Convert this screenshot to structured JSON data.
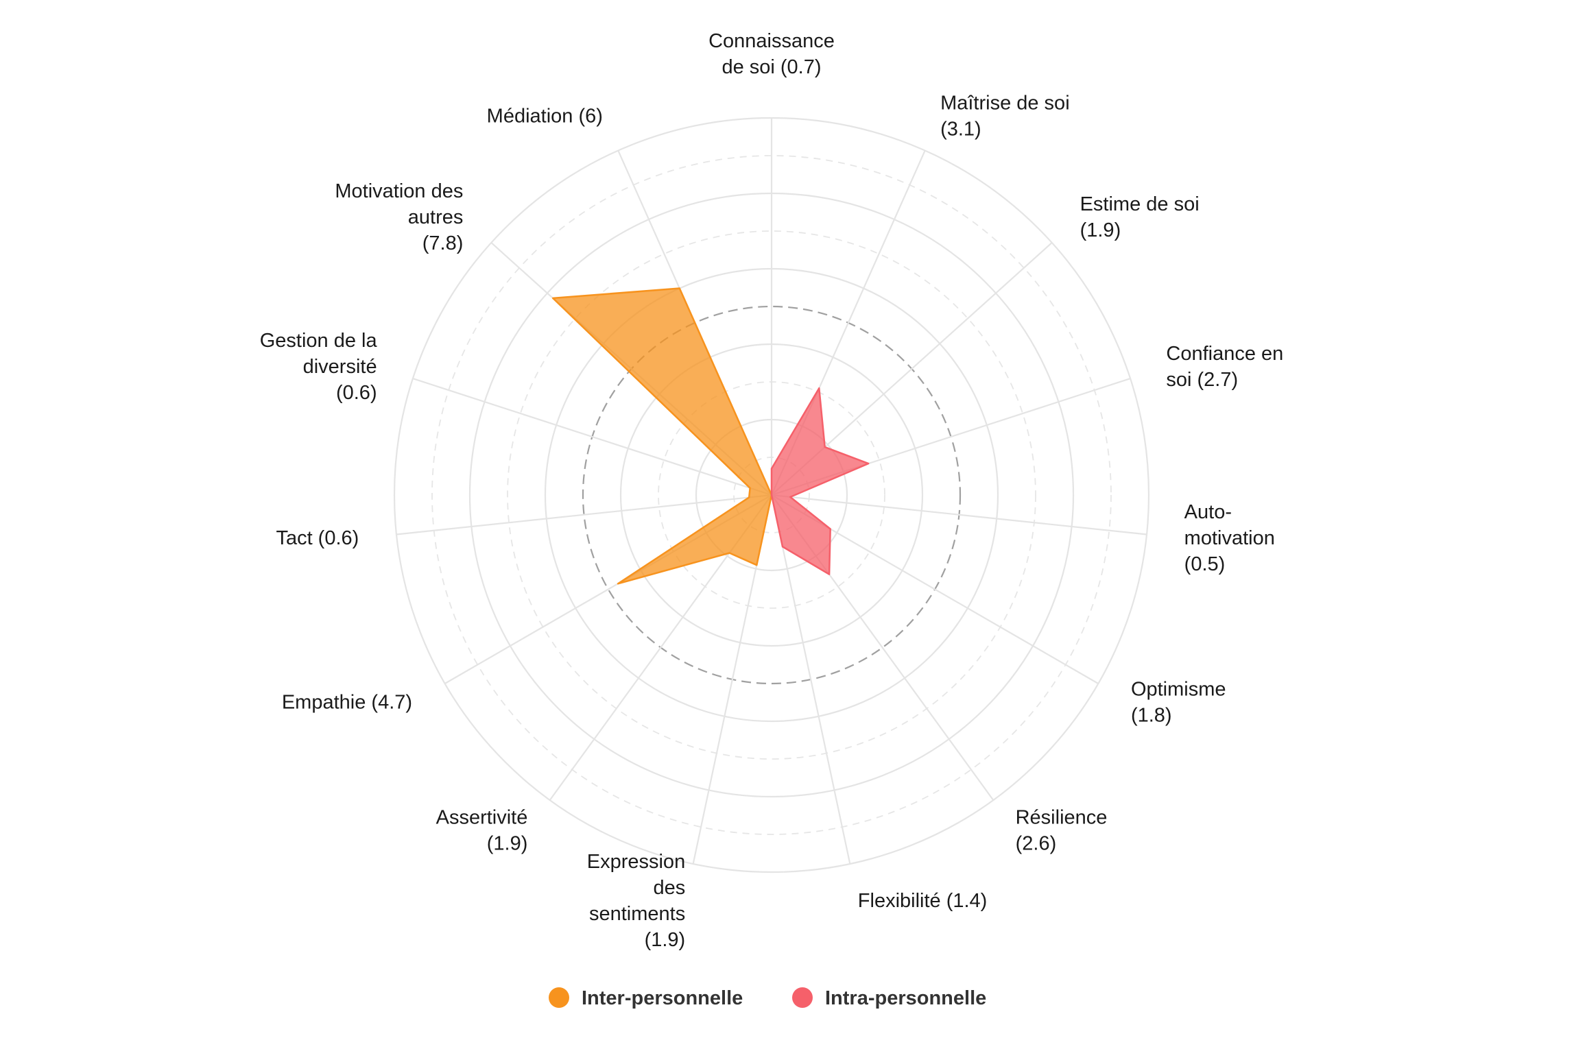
{
  "chart_data": {
    "type": "radar",
    "rmax": 10,
    "rings": [
      1,
      2,
      3,
      4,
      5,
      6,
      7,
      8,
      9,
      10
    ],
    "grid": true,
    "reference_ring": 5,
    "legend_position": "bottom",
    "categories": [
      {
        "lines": [
          "Connaissance",
          "de soi (0.7)"
        ],
        "value": 0.7,
        "group": "intra"
      },
      {
        "lines": [
          "Maîtrise de soi",
          "(3.1)"
        ],
        "value": 3.1,
        "group": "intra"
      },
      {
        "lines": [
          "Estime de soi",
          "(1.9)"
        ],
        "value": 1.9,
        "group": "intra"
      },
      {
        "lines": [
          "Confiance en",
          "soi (2.7)"
        ],
        "value": 2.7,
        "group": "intra"
      },
      {
        "lines": [
          "Auto-",
          "motivation",
          "(0.5)"
        ],
        "value": 0.5,
        "group": "intra"
      },
      {
        "lines": [
          "Optimisme",
          "(1.8)"
        ],
        "value": 1.8,
        "group": "intra"
      },
      {
        "lines": [
          "Résilience",
          "(2.6)"
        ],
        "value": 2.6,
        "group": "intra"
      },
      {
        "lines": [
          "Flexibilité (1.4)"
        ],
        "value": 1.4,
        "group": "intra"
      },
      {
        "lines": [
          "Expression",
          "des",
          "sentiments",
          "(1.9)"
        ],
        "value": 1.9,
        "group": "inter"
      },
      {
        "lines": [
          "Assertivité",
          "(1.9)"
        ],
        "value": 1.9,
        "group": "inter"
      },
      {
        "lines": [
          "Empathie (4.7)"
        ],
        "value": 4.7,
        "group": "inter"
      },
      {
        "lines": [
          "Tact (0.6)"
        ],
        "value": 0.6,
        "group": "inter"
      },
      {
        "lines": [
          "Gestion de la",
          "diversité",
          "(0.6)"
        ],
        "value": 0.6,
        "group": "inter"
      },
      {
        "lines": [
          "Motivation des",
          "autres",
          "(7.8)"
        ],
        "value": 7.8,
        "group": "inter"
      },
      {
        "lines": [
          "Médiation (6)"
        ],
        "value": 6,
        "group": "inter"
      }
    ],
    "series": [
      {
        "key": "inter",
        "name": "Inter-personnelle",
        "color": "#f7931e"
      },
      {
        "key": "intra",
        "name": "Intra-personnelle",
        "color": "#f5606a"
      }
    ]
  }
}
